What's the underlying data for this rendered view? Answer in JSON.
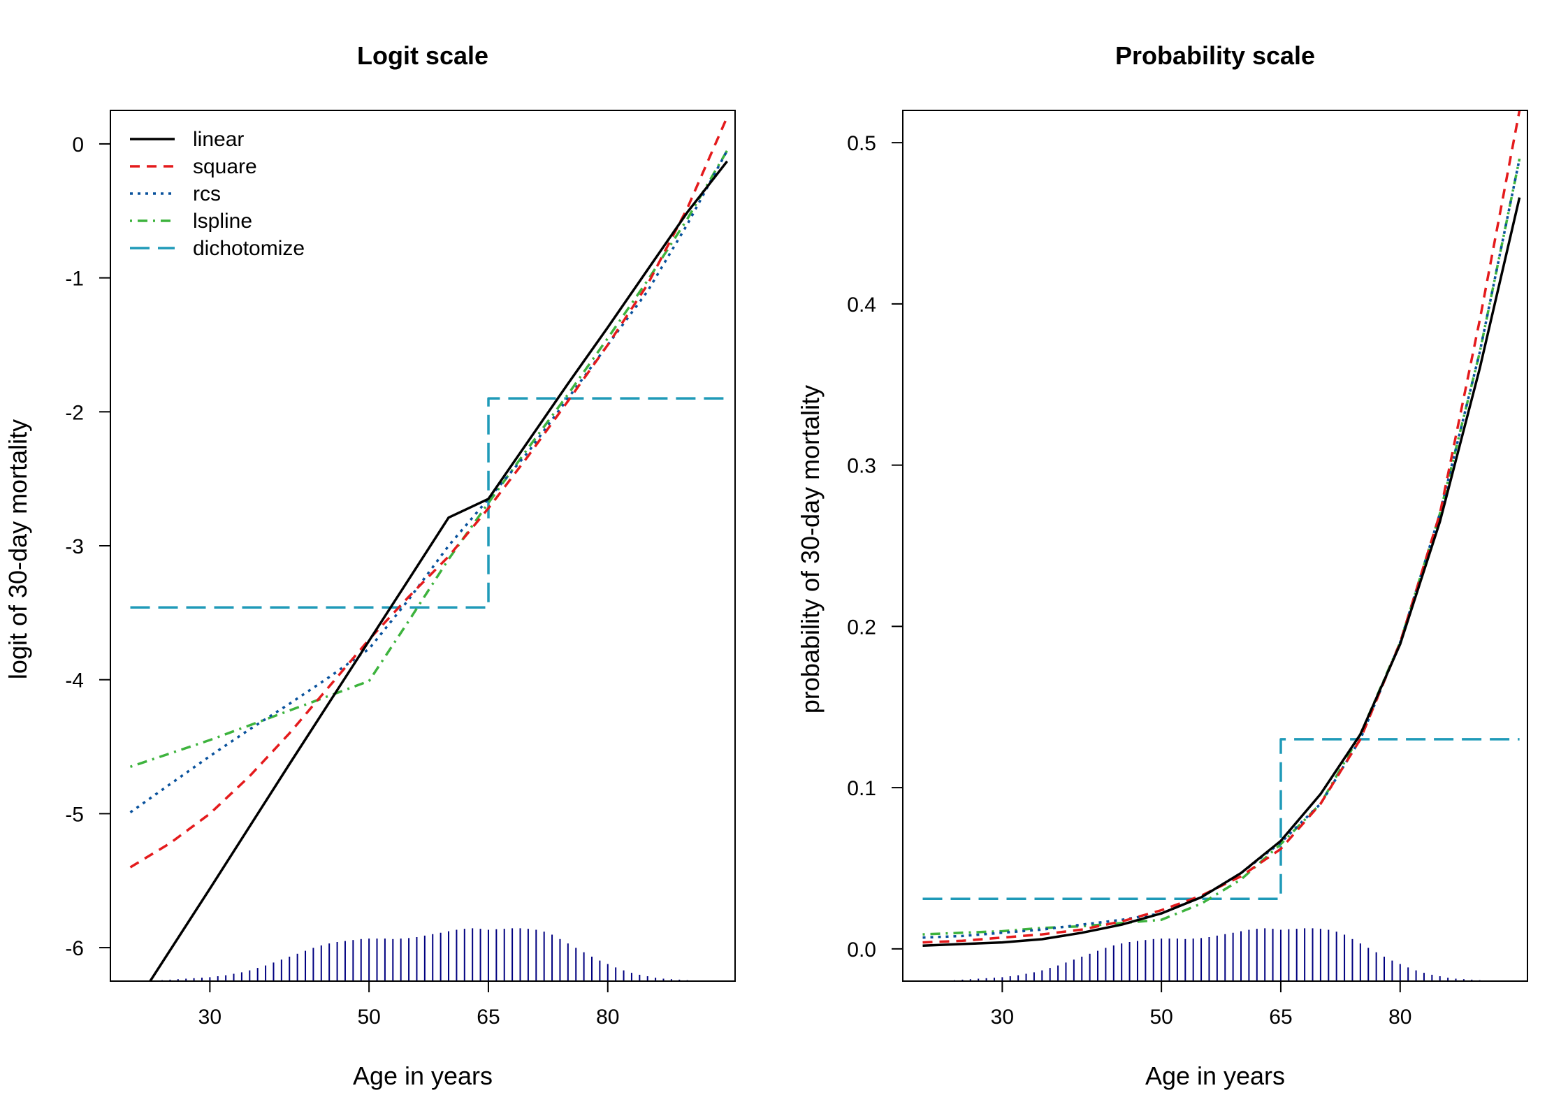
{
  "colors": {
    "linear": "#000000",
    "square": "#E41A1C",
    "rcs": "#08519C",
    "lspline": "#3DB33D",
    "dichotomize": "#1F9AB8",
    "rug": "#000080"
  },
  "chart_data": [
    {
      "type": "line",
      "title": "Logit scale",
      "xlabel": "Age in years",
      "ylabel": "logit of 30-day mortality",
      "xlim": [
        17.5,
        96
      ],
      "ylim": [
        -6.25,
        0.25
      ],
      "xticks": [
        30,
        50,
        65,
        80
      ],
      "xtick_labels": [
        "30",
        "50",
        "65",
        "80"
      ],
      "yticks": [
        0,
        -1,
        -2,
        -3,
        -4,
        -5,
        -6
      ],
      "ytick_labels": [
        "0",
        "-1",
        "-2",
        "-3",
        "-4",
        "-5",
        "-6"
      ],
      "legend_position": "top-left",
      "grid": false,
      "series": [
        {
          "name": "linear",
          "style": "solid",
          "x": [
            22.5,
            30,
            40,
            50,
            55,
            60,
            65,
            70,
            75,
            80,
            85,
            90,
            95
          ],
          "y": [
            -6.25,
            -5.56,
            -4.63,
            -3.71,
            -3.25,
            -2.79,
            -2.65,
            -2.22,
            -1.79,
            -1.37,
            -0.94,
            -0.51,
            -0.13
          ]
        },
        {
          "name": "square",
          "style": "dashed",
          "x": [
            20,
            25,
            30,
            35,
            40,
            45,
            50,
            55,
            60,
            65,
            70,
            75,
            80,
            85,
            90,
            95
          ],
          "y": [
            -5.4,
            -5.22,
            -5.0,
            -4.72,
            -4.4,
            -4.05,
            -3.7,
            -3.38,
            -3.08,
            -2.72,
            -2.33,
            -1.92,
            -1.5,
            -1.05,
            -0.48,
            0.2
          ]
        },
        {
          "name": "rcs",
          "style": "dotted",
          "x": [
            20,
            25,
            30,
            35,
            40,
            45,
            50,
            55,
            60,
            65,
            70,
            75,
            80,
            85,
            90,
            95
          ],
          "y": [
            -4.99,
            -4.78,
            -4.57,
            -4.37,
            -4.18,
            -3.98,
            -3.77,
            -3.4,
            -3.0,
            -2.65,
            -2.3,
            -1.9,
            -1.5,
            -1.1,
            -0.6,
            -0.05
          ]
        },
        {
          "name": "lspline",
          "style": "dotdash",
          "x": [
            20,
            30,
            40,
            50,
            55,
            60,
            65,
            70,
            75,
            80,
            85,
            90,
            95
          ],
          "y": [
            -4.65,
            -4.45,
            -4.23,
            -4.01,
            -3.56,
            -3.1,
            -2.68,
            -2.27,
            -1.87,
            -1.45,
            -1.02,
            -0.56,
            -0.05
          ]
        },
        {
          "name": "dichotomize",
          "style": "longdash",
          "x": [
            20,
            65,
            65,
            95
          ],
          "y": [
            -3.46,
            -3.46,
            -1.9,
            -1.9
          ]
        }
      ],
      "rug": {
        "x": [
          24,
          25,
          26,
          27,
          28,
          29,
          30,
          31,
          32,
          33,
          34,
          35,
          36,
          37,
          38,
          39,
          40,
          41,
          42,
          43,
          44,
          45,
          46,
          47,
          48,
          49,
          50,
          51,
          52,
          53,
          54,
          55,
          56,
          57,
          58,
          59,
          60,
          61,
          62,
          63,
          64,
          65,
          66,
          67,
          68,
          69,
          70,
          71,
          72,
          73,
          74,
          75,
          76,
          77,
          78,
          79,
          80,
          81,
          82,
          83,
          84,
          85,
          86,
          87,
          88,
          89,
          90
        ],
        "density": [
          0.02,
          0.03,
          0.04,
          0.05,
          0.06,
          0.07,
          0.08,
          0.1,
          0.12,
          0.15,
          0.18,
          0.22,
          0.27,
          0.32,
          0.38,
          0.44,
          0.5,
          0.56,
          0.62,
          0.68,
          0.73,
          0.77,
          0.8,
          0.82,
          0.84,
          0.86,
          0.87,
          0.87,
          0.87,
          0.86,
          0.87,
          0.88,
          0.9,
          0.93,
          0.96,
          0.99,
          1.02,
          1.05,
          1.07,
          1.08,
          1.07,
          1.05,
          1.06,
          1.07,
          1.08,
          1.08,
          1.07,
          1.05,
          1.01,
          0.95,
          0.86,
          0.77,
          0.68,
          0.59,
          0.5,
          0.42,
          0.35,
          0.28,
          0.22,
          0.17,
          0.13,
          0.1,
          0.07,
          0.05,
          0.04,
          0.03,
          0.02
        ]
      }
    },
    {
      "type": "line",
      "title": "Probability scale",
      "xlabel": "Age in years",
      "ylabel": "probability of 30-day mortality",
      "xlim": [
        17.5,
        96
      ],
      "ylim": [
        -0.02,
        0.52
      ],
      "xticks": [
        30,
        50,
        65,
        80
      ],
      "xtick_labels": [
        "30",
        "50",
        "65",
        "80"
      ],
      "yticks": [
        0.0,
        0.1,
        0.2,
        0.3,
        0.4,
        0.5
      ],
      "ytick_labels": [
        "0.0",
        "0.1",
        "0.2",
        "0.3",
        "0.4",
        "0.5"
      ],
      "grid": false,
      "series": [
        {
          "name": "linear",
          "style": "solid",
          "x": [
            20,
            25,
            30,
            35,
            40,
            45,
            50,
            55,
            60,
            65,
            70,
            75,
            80,
            85,
            90,
            95
          ],
          "y": [
            0.002,
            0.003,
            0.004,
            0.006,
            0.01,
            0.015,
            0.022,
            0.032,
            0.047,
            0.067,
            0.096,
            0.133,
            0.189,
            0.265,
            0.36,
            0.466
          ]
        },
        {
          "name": "square",
          "style": "dashed",
          "x": [
            20,
            25,
            30,
            35,
            40,
            45,
            50,
            55,
            60,
            65,
            70,
            75,
            80,
            85,
            90,
            95
          ],
          "y": [
            0.004,
            0.005,
            0.007,
            0.009,
            0.012,
            0.017,
            0.024,
            0.033,
            0.045,
            0.062,
            0.09,
            0.13,
            0.19,
            0.27,
            0.39,
            0.52
          ]
        },
        {
          "name": "rcs",
          "style": "dotted",
          "x": [
            20,
            25,
            30,
            35,
            40,
            45,
            50,
            55,
            60,
            65,
            70,
            75,
            80,
            85,
            90,
            95
          ],
          "y": [
            0.007,
            0.008,
            0.01,
            0.012,
            0.015,
            0.018,
            0.022,
            0.032,
            0.047,
            0.066,
            0.09,
            0.13,
            0.19,
            0.27,
            0.37,
            0.49
          ]
        },
        {
          "name": "lspline",
          "style": "dotdash",
          "x": [
            20,
            25,
            30,
            35,
            40,
            45,
            50,
            55,
            60,
            65,
            70,
            75,
            80,
            85,
            90,
            95
          ],
          "y": [
            0.009,
            0.01,
            0.011,
            0.013,
            0.014,
            0.016,
            0.018,
            0.028,
            0.043,
            0.065,
            0.09,
            0.133,
            0.19,
            0.27,
            0.37,
            0.49
          ]
        },
        {
          "name": "dichotomize",
          "style": "longdash",
          "x": [
            20,
            65,
            65,
            95
          ],
          "y": [
            0.031,
            0.031,
            0.13,
            0.13
          ]
        }
      ],
      "rug": {
        "x": [
          24,
          25,
          26,
          27,
          28,
          29,
          30,
          31,
          32,
          33,
          34,
          35,
          36,
          37,
          38,
          39,
          40,
          41,
          42,
          43,
          44,
          45,
          46,
          47,
          48,
          49,
          50,
          51,
          52,
          53,
          54,
          55,
          56,
          57,
          58,
          59,
          60,
          61,
          62,
          63,
          64,
          65,
          66,
          67,
          68,
          69,
          70,
          71,
          72,
          73,
          74,
          75,
          76,
          77,
          78,
          79,
          80,
          81,
          82,
          83,
          84,
          85,
          86,
          87,
          88,
          89,
          90
        ],
        "density": [
          0.02,
          0.03,
          0.04,
          0.05,
          0.06,
          0.07,
          0.08,
          0.1,
          0.12,
          0.15,
          0.18,
          0.22,
          0.27,
          0.32,
          0.38,
          0.44,
          0.5,
          0.56,
          0.62,
          0.68,
          0.73,
          0.77,
          0.8,
          0.82,
          0.84,
          0.86,
          0.87,
          0.87,
          0.87,
          0.86,
          0.87,
          0.88,
          0.9,
          0.93,
          0.96,
          0.99,
          1.02,
          1.05,
          1.07,
          1.08,
          1.07,
          1.05,
          1.06,
          1.07,
          1.08,
          1.08,
          1.07,
          1.05,
          1.01,
          0.95,
          0.86,
          0.77,
          0.68,
          0.59,
          0.5,
          0.42,
          0.35,
          0.28,
          0.22,
          0.17,
          0.13,
          0.1,
          0.07,
          0.05,
          0.04,
          0.03,
          0.02
        ]
      }
    }
  ]
}
